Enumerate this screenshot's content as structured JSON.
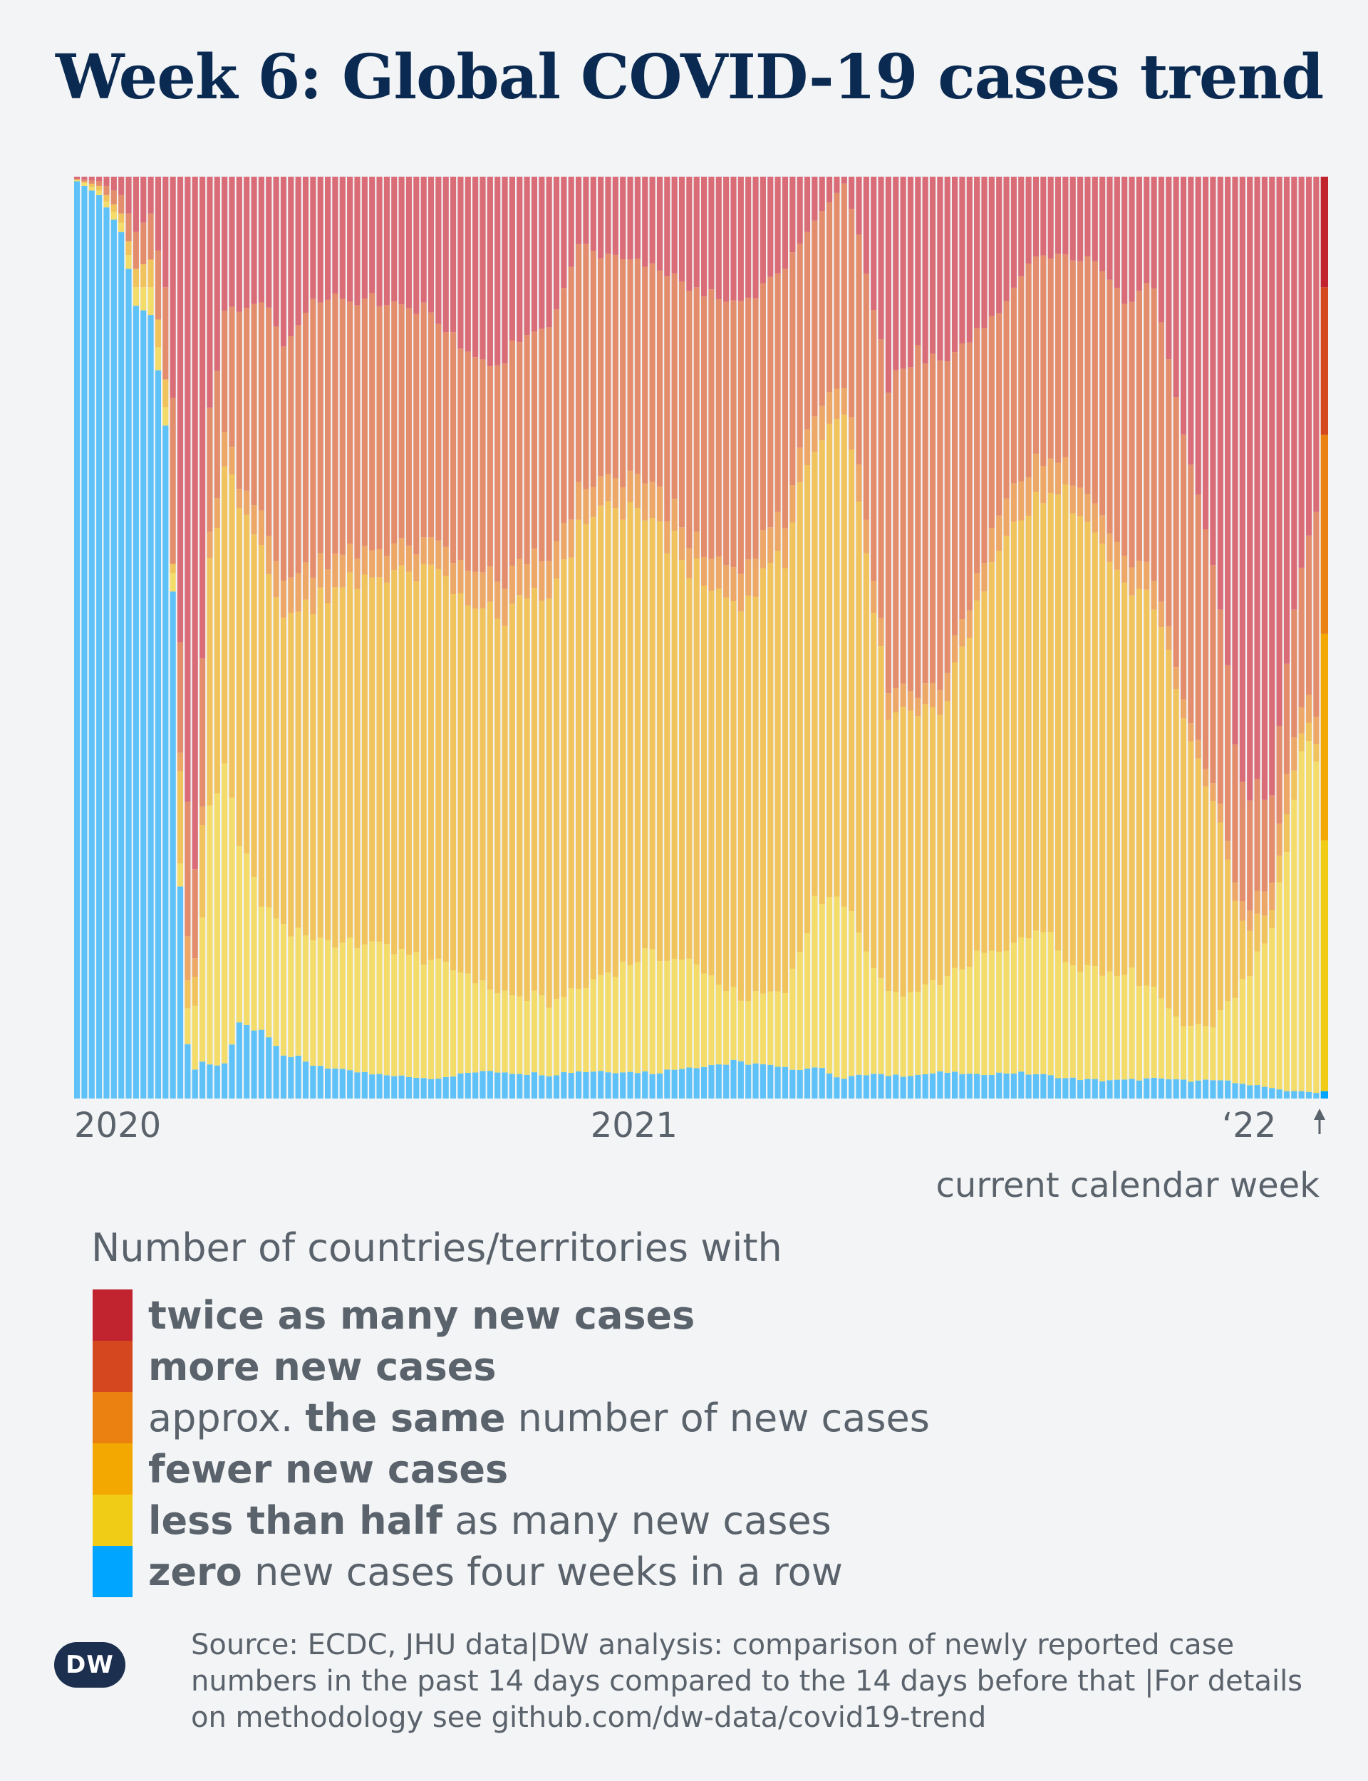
{
  "title": "Week 6: Global COVID-19 cases trend",
  "annotation": "current calendar week",
  "legend": {
    "title": "Number of countries/territories with",
    "items": [
      {
        "key": "twice",
        "color": "#c1232f",
        "pre": "",
        "bold": "twice as many new cases",
        "post": ""
      },
      {
        "key": "more",
        "color": "#d4471f",
        "pre": "",
        "bold": "more new cases",
        "post": ""
      },
      {
        "key": "same",
        "color": "#ea8110",
        "pre": "approx. ",
        "bold": "the same",
        "post": " number of new cases"
      },
      {
        "key": "fewer",
        "color": "#f2a800",
        "pre": "",
        "bold": "fewer new cases",
        "post": ""
      },
      {
        "key": "half",
        "color": "#f0cc16",
        "pre": "",
        "bold": "less than half",
        "post": " as many new cases"
      },
      {
        "key": "zero",
        "color": "#00a5ff",
        "pre": "",
        "bold": "zero",
        "post": " new cases four weeks in a row"
      }
    ]
  },
  "source": "Source: ECDC, JHU data|DW analysis: comparison of newly reported case numbers in the past 14 days compared to the 14 days before that |For details on methodology see github.com/dw-data/covid19-trend",
  "logo_text": "DW",
  "chart_data": {
    "type": "bar",
    "stacked": true,
    "normalized": true,
    "ylim": [
      0,
      1
    ],
    "order_bottom_to_top": [
      "zero",
      "half",
      "fewer",
      "same",
      "more",
      "twice"
    ],
    "x_tick_labels": [
      {
        "label": "2020",
        "index": 0
      },
      {
        "label": "2021",
        "index": 70
      },
      {
        "label": "‘22",
        "index": 160
      }
    ],
    "weeks": 170,
    "highlight_last": true,
    "breakpoints": {
      "week": [
        0,
        3,
        6,
        8,
        10,
        12,
        13,
        14,
        15,
        16,
        17,
        18,
        20,
        22,
        25,
        28,
        32,
        40,
        48,
        56,
        64,
        68,
        72,
        78,
        84,
        90,
        96,
        100,
        104,
        106,
        110,
        114,
        118,
        122,
        126,
        130,
        134,
        138,
        142,
        146,
        150,
        154,
        158,
        162,
        164,
        166,
        168,
        169
      ],
      "zero": [
        0.995,
        0.98,
        0.94,
        0.86,
        0.85,
        0.73,
        0.55,
        0.23,
        0.06,
        0.03,
        0.04,
        0.037,
        0.038,
        0.08,
        0.077,
        0.05,
        0.037,
        0.026,
        0.022,
        0.03,
        0.026,
        0.03,
        0.03,
        0.028,
        0.035,
        0.04,
        0.032,
        0.034,
        0.022,
        0.026,
        0.026,
        0.026,
        0.028,
        0.026,
        0.028,
        0.026,
        0.022,
        0.02,
        0.02,
        0.022,
        0.02,
        0.02,
        0.016,
        0.012,
        0.008,
        0.008,
        0.006,
        0.01
      ],
      "half": [
        0.002,
        0.005,
        0.01,
        0.02,
        0.03,
        0.02,
        0.02,
        0.025,
        0.04,
        0.07,
        0.16,
        0.27,
        0.32,
        0.2,
        0.14,
        0.14,
        0.14,
        0.14,
        0.13,
        0.09,
        0.08,
        0.09,
        0.11,
        0.13,
        0.11,
        0.07,
        0.08,
        0.18,
        0.2,
        0.15,
        0.09,
        0.09,
        0.1,
        0.13,
        0.13,
        0.16,
        0.13,
        0.12,
        0.12,
        0.1,
        0.06,
        0.06,
        0.11,
        0.18,
        0.26,
        0.36,
        0.37,
        0.34
      ],
      "fewer": [
        0.0,
        0.005,
        0.01,
        0.02,
        0.03,
        0.03,
        0.01,
        0.1,
        0.03,
        0.03,
        0.1,
        0.26,
        0.33,
        0.38,
        0.38,
        0.34,
        0.38,
        0.4,
        0.42,
        0.4,
        0.44,
        0.5,
        0.5,
        0.47,
        0.42,
        0.42,
        0.48,
        0.5,
        0.52,
        0.46,
        0.32,
        0.31,
        0.3,
        0.38,
        0.45,
        0.47,
        0.51,
        0.48,
        0.43,
        0.43,
        0.34,
        0.24,
        0.06,
        0.02,
        0.04,
        0.02,
        0.02,
        0.28
      ],
      "same": [
        0.0,
        0.0,
        0.0,
        0.0,
        0.0,
        0.0,
        0.0,
        0.02,
        0.05,
        0.02,
        0.02,
        0.03,
        0.04,
        0.02,
        0.04,
        0.04,
        0.04,
        0.03,
        0.03,
        0.04,
        0.04,
        0.04,
        0.03,
        0.04,
        0.03,
        0.04,
        0.04,
        0.04,
        0.03,
        0.04,
        0.03,
        0.02,
        0.03,
        0.03,
        0.04,
        0.04,
        0.03,
        0.03,
        0.03,
        0.03,
        0.02,
        0.02,
        0.02,
        0.03,
        0.04,
        0.03,
        0.03,
        0.27
      ],
      "more": [
        0.0,
        0.005,
        0.02,
        0.04,
        0.05,
        0.1,
        0.18,
        0.12,
        0.15,
        0.1,
        0.16,
        0.14,
        0.13,
        0.18,
        0.23,
        0.26,
        0.29,
        0.27,
        0.25,
        0.23,
        0.25,
        0.27,
        0.24,
        0.24,
        0.28,
        0.29,
        0.27,
        0.2,
        0.22,
        0.26,
        0.32,
        0.37,
        0.34,
        0.26,
        0.22,
        0.22,
        0.22,
        0.26,
        0.29,
        0.31,
        0.29,
        0.24,
        0.13,
        0.1,
        0.11,
        0.15,
        0.21,
        0.2
      ],
      "twice": [
        0.003,
        0.005,
        0.02,
        0.06,
        0.04,
        0.12,
        0.24,
        0.505,
        0.67,
        0.75,
        0.52,
        0.27,
        0.142,
        0.14,
        0.133,
        0.18,
        0.133,
        0.134,
        0.148,
        0.21,
        0.164,
        0.07,
        0.09,
        0.092,
        0.125,
        0.14,
        0.098,
        0.046,
        0.008,
        0.064,
        0.234,
        0.194,
        0.202,
        0.174,
        0.132,
        0.084,
        0.088,
        0.09,
        0.14,
        0.118,
        0.27,
        0.42,
        0.664,
        0.658,
        0.542,
        0.432,
        0.364,
        0.15
      ]
    }
  }
}
